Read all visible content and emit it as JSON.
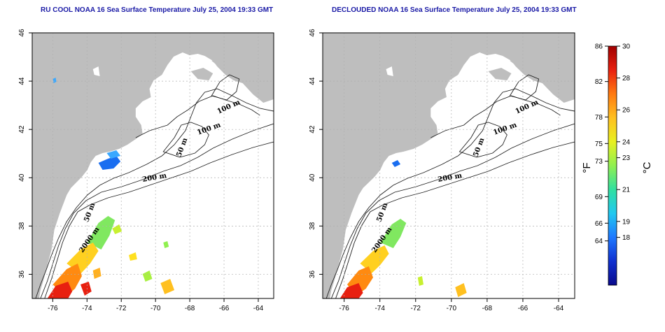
{
  "panels": [
    {
      "title": "RU COOL NOAA 16 Sea Surface Temperature July 25, 2004 19:33 GMT"
    },
    {
      "title": "DECLOUDED NOAA 16 Sea Surface Temperature July 25, 2004 19:33 GMT"
    }
  ],
  "axes": {
    "lon_ticks": [
      "-76",
      "-74",
      "-72",
      "-70",
      "-68",
      "-66",
      "-64"
    ],
    "lat_ticks": [
      "36",
      "38",
      "40",
      "42",
      "44",
      "46"
    ],
    "lon_range": [
      -77.2,
      -63.1
    ],
    "lat_range": [
      35.0,
      46.0
    ]
  },
  "contour_labels": [
    "100 m",
    "100 m",
    "50 m",
    "200 m",
    "50 m",
    "2000 m"
  ],
  "colorbar": {
    "fahrenheit_ticks": [
      "86",
      "82",
      "78",
      "75",
      "73",
      "69",
      "66",
      "64"
    ],
    "celsius_ticks": [
      "30",
      "28",
      "26",
      "24",
      "23",
      "21",
      "19",
      "18"
    ],
    "fahrenheit_unit": "°F",
    "celsius_unit": "°C",
    "range_c": [
      15,
      30
    ],
    "colors": [
      "#0a0a8c",
      "#1030d0",
      "#1e78ff",
      "#20c8f0",
      "#30e0a0",
      "#90f050",
      "#e8f020",
      "#ffc020",
      "#ff7a10",
      "#e82010",
      "#a00000"
    ]
  },
  "colors": {
    "land": "#bebebe",
    "title": "#1a1aa6",
    "grid": "#b0b0b0"
  }
}
